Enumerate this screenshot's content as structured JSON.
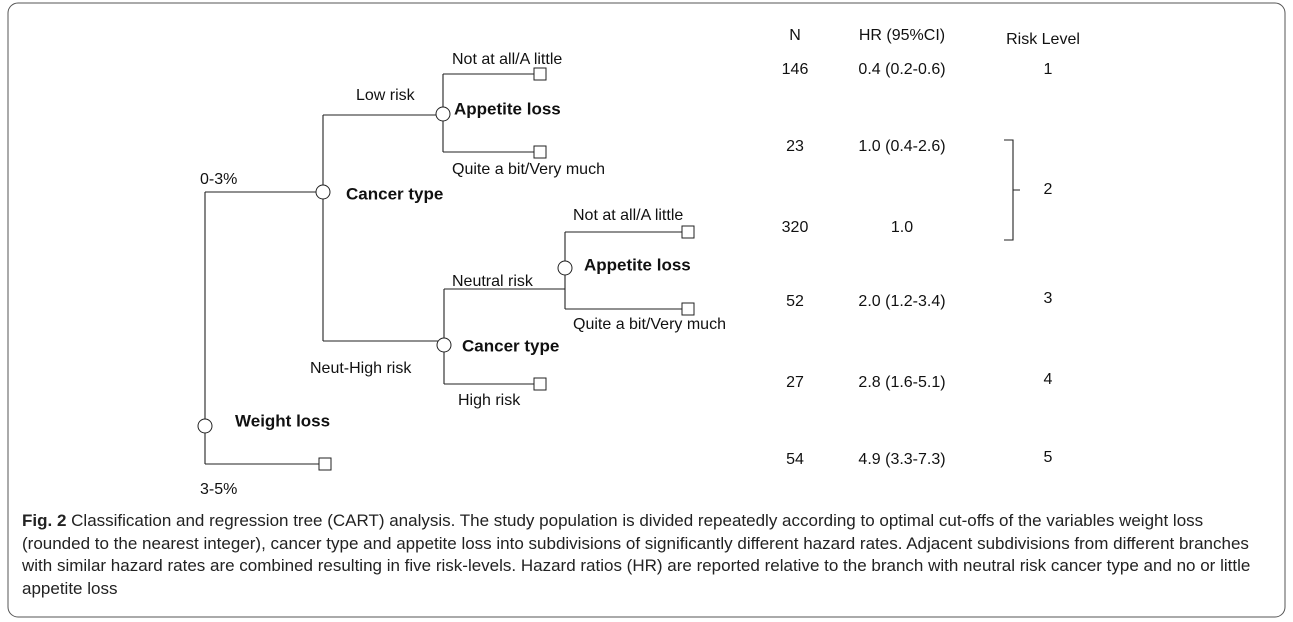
{
  "tree": {
    "nodes": [
      {
        "label": "Weight loss"
      },
      {
        "label": "Cancer type"
      },
      {
        "label": "Appetite loss"
      },
      {
        "label": "Cancer type"
      },
      {
        "label": "Appetite loss"
      }
    ],
    "edges": [
      {
        "label": "0-3%"
      },
      {
        "label": "3-5%"
      },
      {
        "label": "Low risk"
      },
      {
        "label": "Neut-High risk"
      },
      {
        "label": "Not at all/A little"
      },
      {
        "label": "Quite a bit/Very much"
      },
      {
        "label": "Neutral risk"
      },
      {
        "label": "High risk"
      },
      {
        "label": "Not at all/A little"
      },
      {
        "label": "Quite a bit/Very much"
      }
    ]
  },
  "table": {
    "headers": [
      "N",
      "HR (95%CI)",
      "Risk Level"
    ],
    "rows": [
      [
        "146",
        "0.4 (0.2-0.6)"
      ],
      [
        "23",
        "1.0 (0.4-2.6)"
      ],
      [
        "320",
        "1.0"
      ],
      [
        "52",
        "2.0 (1.2-3.4)"
      ],
      [
        "27",
        "2.8 (1.6-5.1)"
      ],
      [
        "54",
        "4.9 (3.3-7.3)"
      ]
    ],
    "risk_levels": [
      "1",
      "2",
      "3",
      "4",
      "5"
    ]
  },
  "caption": {
    "label": "Fig. 2",
    "text": "Classification and regression tree (CART) analysis. The study population is divided repeatedly according to optimal cut-offs of the variables weight loss (rounded to the nearest integer), cancer type and appetite loss into subdivisions of significantly different hazard rates. Adjacent subdivisions from different branches with similar hazard rates are combined resulting in five risk-levels. Hazard ratios (HR) are reported relative to the branch with neutral risk cancer type and no or little appetite loss"
  }
}
